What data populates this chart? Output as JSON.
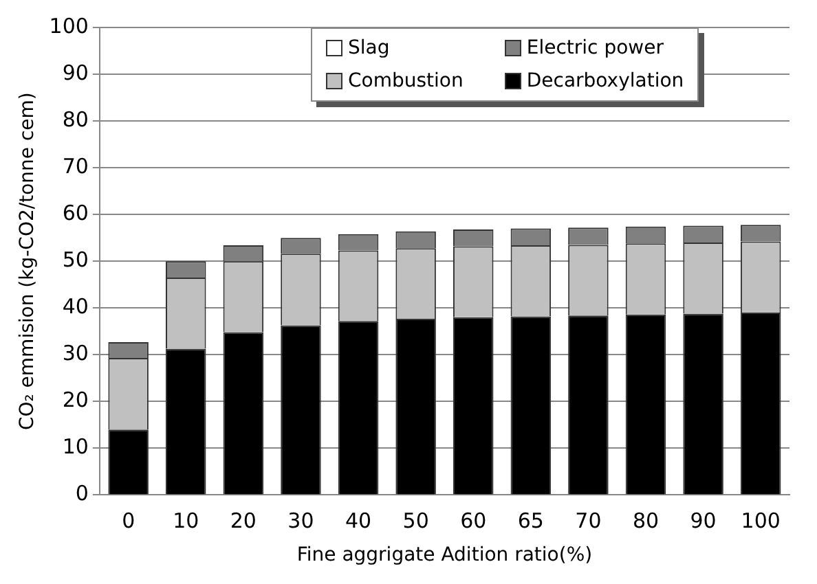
{
  "chart_data": {
    "type": "bar",
    "stacked": true,
    "xlabel": "Fine aggrigate Adition ratio(%)",
    "ylabel": "CO₂ emmision (kg-CO2/tonne cem)",
    "categories": [
      "0",
      "10",
      "20",
      "30",
      "40",
      "50",
      "60",
      "65",
      "70",
      "80",
      "90",
      "100"
    ],
    "series": [
      {
        "name": "Decarboxylation",
        "color": "#000000",
        "values": [
          14,
          31.3,
          34.8,
          36.3,
          37.2,
          37.7,
          38,
          38.2,
          38.4,
          38.6,
          38.8,
          39
        ]
      },
      {
        "name": "Combustion",
        "color": "#c0c0c0",
        "values": [
          15.3,
          15.2,
          15.2,
          15.3,
          15.1,
          15.1,
          15.2,
          15.2,
          15.1,
          15.2,
          15.2,
          15.2
        ]
      },
      {
        "name": "Electric power",
        "color": "#808080",
        "values": [
          3.4,
          3.5,
          3.4,
          3.4,
          3.5,
          3.6,
          3.6,
          3.6,
          3.7,
          3.6,
          3.6,
          3.6
        ]
      },
      {
        "name": "Slag",
        "color": "#ffffff",
        "values": [
          0,
          0,
          0,
          0,
          0,
          0,
          0,
          0,
          0,
          0,
          0,
          0
        ]
      }
    ],
    "ylim": [
      0,
      100
    ],
    "yticks": [
      0,
      10,
      20,
      30,
      40,
      50,
      60,
      70,
      80,
      90,
      100
    ],
    "grid": "y",
    "legend": "top"
  }
}
